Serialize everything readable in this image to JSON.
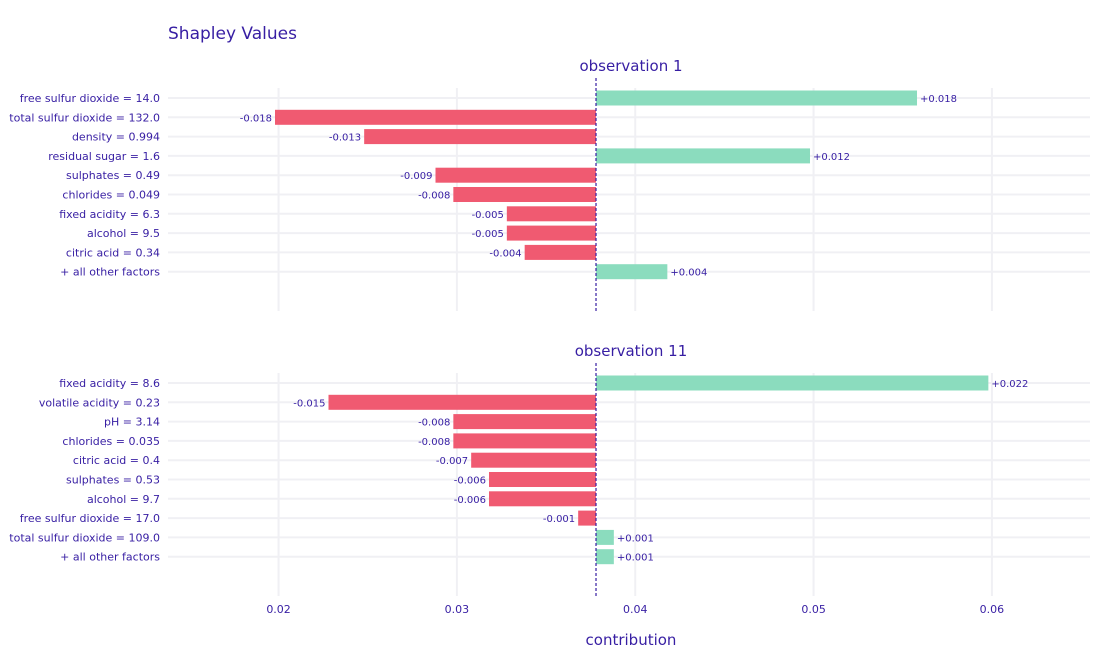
{
  "chart_data": {
    "type": "bar",
    "title": "Shapley Values",
    "xlabel": "contribution",
    "baseline": 0.0378,
    "xlim": [
      0.0138,
      0.0655
    ],
    "xticks": [
      0.02,
      0.03,
      0.04,
      0.05,
      0.06
    ],
    "xtick_labels": [
      "0.02",
      "0.03",
      "0.04",
      "0.05",
      "0.06"
    ],
    "grid": true,
    "colors": {
      "positive": "#8bdcbe",
      "negative": "#f05a71",
      "text": "#371ea3",
      "baseline": "#371ea3",
      "grid": "#f0f0f4"
    },
    "panels": [
      {
        "subtitle": "observation 1",
        "categories": [
          "free sulfur dioxide = 14.0",
          "total sulfur dioxide = 132.0",
          "density = 0.994",
          "residual sugar = 1.6",
          "sulphates = 0.49",
          "chlorides = 0.049",
          "fixed acidity = 6.3",
          "alcohol = 9.5",
          "citric acid = 0.34",
          "+ all other factors"
        ],
        "values": [
          0.018,
          -0.018,
          -0.013,
          0.012,
          -0.009,
          -0.008,
          -0.005,
          -0.005,
          -0.004,
          0.004
        ],
        "labels": [
          "+0.018",
          "-0.018",
          "-0.013",
          "+0.012",
          "-0.009",
          "-0.008",
          "-0.005",
          "-0.005",
          "-0.004",
          "+0.004"
        ]
      },
      {
        "subtitle": "observation 11",
        "categories": [
          "fixed acidity = 8.6",
          "volatile acidity = 0.23",
          "pH = 3.14",
          "chlorides = 0.035",
          "citric acid = 0.4",
          "sulphates = 0.53",
          "alcohol = 9.7",
          "free sulfur dioxide = 17.0",
          "total sulfur dioxide = 109.0",
          "+ all other factors"
        ],
        "values": [
          0.022,
          -0.015,
          -0.008,
          -0.008,
          -0.007,
          -0.006,
          -0.006,
          -0.001,
          0.001,
          0.001
        ],
        "labels": [
          "+0.022",
          "-0.015",
          "-0.008",
          "-0.008",
          "-0.007",
          "-0.006",
          "-0.006",
          "-0.001",
          "+0.001",
          "+0.001"
        ]
      }
    ]
  }
}
